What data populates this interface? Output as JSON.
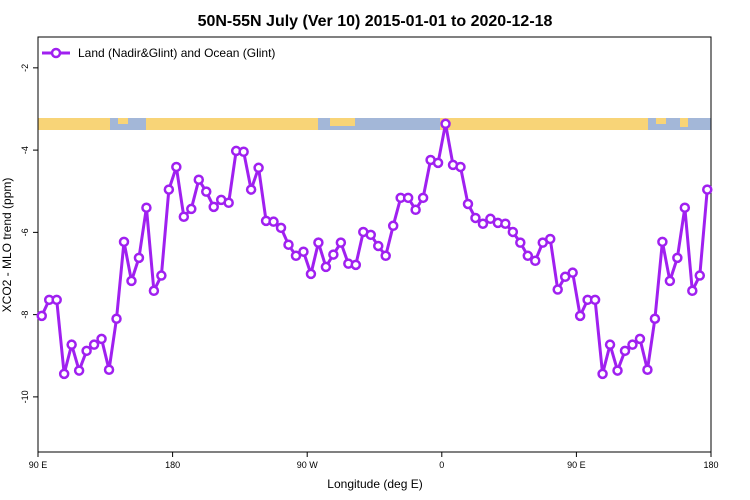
{
  "chart_data": {
    "type": "line",
    "title": "50N-55N July (Ver 10)   2015-01-01 to 2020-12-18",
    "x_label": "Longitude (deg E)",
    "y_label": "XCO2 - MLO trend (ppm)",
    "xlim": [
      90,
      540
    ],
    "ylim": [
      -11.34,
      -1.25
    ],
    "xticks": [
      {
        "value": 90,
        "label": "90 E"
      },
      {
        "value": 180,
        "label": "180"
      },
      {
        "value": 270,
        "label": "90 W"
      },
      {
        "value": 360,
        "label": "0"
      },
      {
        "value": 450,
        "label": "90 E"
      },
      {
        "value": 540,
        "label": "180"
      }
    ],
    "yticks": [
      -2,
      -4,
      -6,
      -8,
      -10
    ],
    "legend": "top-left",
    "x": [
      92.5,
      97.5,
      102.5,
      107.5,
      112.5,
      117.5,
      122.5,
      127.5,
      132.5,
      137.5,
      142.5,
      147.5,
      152.5,
      157.5,
      162.5,
      167.5,
      172.5,
      177.5,
      182.5,
      187.5,
      192.5,
      197.5,
      202.5,
      207.5,
      212.5,
      217.5,
      222.5,
      227.5,
      232.5,
      237.5,
      242.5,
      247.5,
      252.5,
      257.5,
      262.5,
      267.5,
      272.5,
      277.5,
      282.5,
      287.5,
      292.5,
      297.5,
      302.5,
      307.5,
      312.5,
      317.5,
      322.5,
      327.5,
      332.5,
      337.5,
      342.5,
      347.5,
      352.5,
      357.5,
      362.5,
      367.5,
      372.5,
      377.5,
      382.5,
      387.5,
      392.5,
      397.5,
      402.5,
      407.5,
      412.5,
      417.5,
      422.5,
      427.5,
      432.5,
      437.5,
      442.5,
      447.5,
      452.5,
      457.5,
      462.5,
      467.5,
      472.5,
      477.5,
      482.5,
      487.5,
      492.5,
      497.5,
      502.5,
      507.5,
      512.5,
      517.5,
      522.5,
      527.5,
      532.5,
      537.5
    ],
    "series": [
      {
        "name": "Land (Nadir&Glint) and Ocean (Glint)",
        "color": "#a020f0",
        "values": [
          -8.03,
          -7.64,
          -7.64,
          -9.44,
          -8.73,
          -9.36,
          -8.88,
          -8.73,
          -8.59,
          -9.34,
          -8.1,
          -6.23,
          -7.18,
          -6.62,
          -5.4,
          -7.42,
          -7.05,
          -4.96,
          -4.41,
          -5.62,
          -5.43,
          -4.72,
          -5.01,
          -5.38,
          -5.21,
          -5.28,
          -4.02,
          -4.04,
          -4.96,
          -4.43,
          -5.72,
          -5.74,
          -5.89,
          -6.3,
          -6.57,
          -6.47,
          -7.01,
          -6.25,
          -6.84,
          -6.54,
          -6.25,
          -6.76,
          -6.79,
          -5.99,
          -6.06,
          -6.33,
          -6.57,
          -5.84,
          -5.16,
          -5.16,
          -5.45,
          -5.16,
          -4.24,
          -4.31,
          -3.36,
          -4.36,
          -4.41,
          -5.31,
          -5.65,
          -5.79,
          -5.67,
          -5.77,
          -5.79,
          -5.99,
          -6.25,
          -6.57,
          -6.69,
          -6.25,
          -6.16,
          -7.39,
          -7.08,
          -6.98,
          -8.03,
          -7.64,
          -7.64,
          -9.44,
          -8.73,
          -9.36,
          -8.88,
          -8.73,
          -8.59,
          -9.34,
          -8.1,
          -6.23,
          -7.18,
          -6.62,
          -5.4,
          -7.42,
          -7.05,
          -4.96
        ]
      }
    ]
  }
}
